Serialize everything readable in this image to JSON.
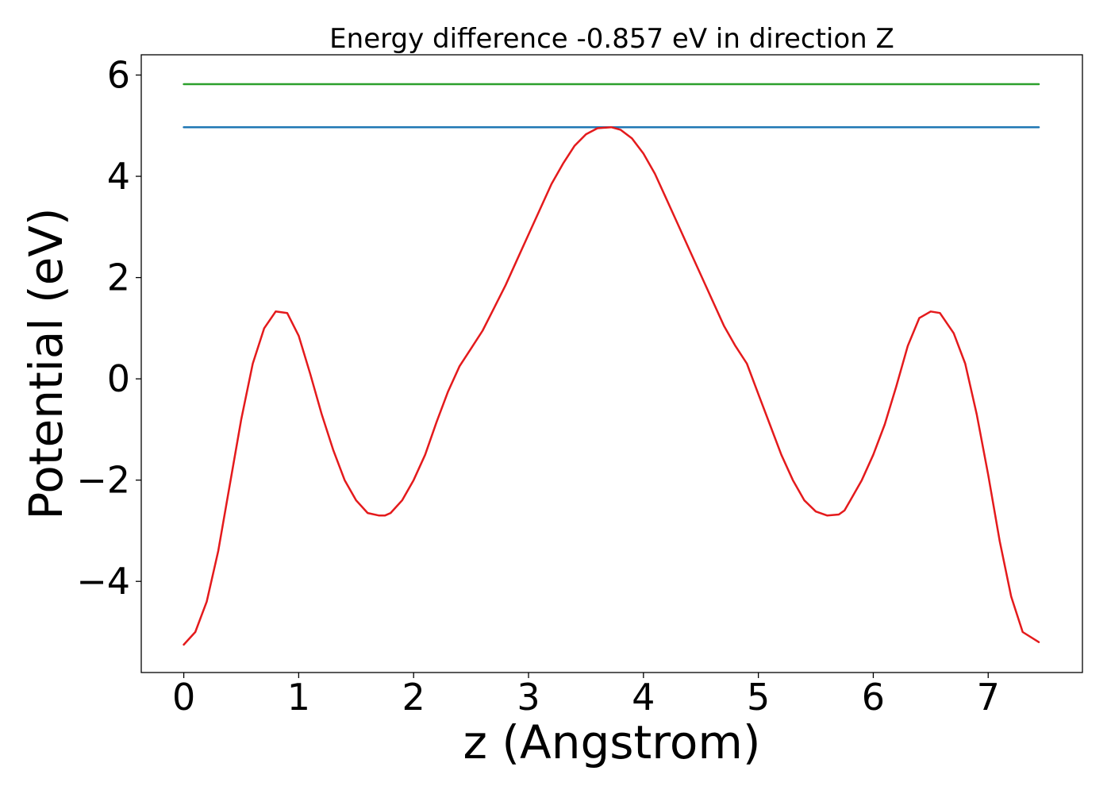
{
  "chart_data": {
    "type": "line",
    "title": "Energy difference -0.857 eV in direction Z",
    "xlabel": "z (Angstrom)",
    "ylabel": "Potential (eV)",
    "xlim": [
      -0.37,
      7.82
    ],
    "ylim": [
      -5.8,
      6.4
    ],
    "x_ticks": [
      0,
      1,
      2,
      3,
      4,
      5,
      6,
      7
    ],
    "x_tick_labels": [
      "0",
      "1",
      "2",
      "3",
      "4",
      "5",
      "6",
      "7"
    ],
    "y_ticks": [
      -4,
      -2,
      0,
      2,
      4,
      6
    ],
    "y_tick_labels": [
      "−4",
      "−2",
      "0",
      "2",
      "4",
      "6"
    ],
    "grid": false,
    "series": [
      {
        "color": "#2ca02c",
        "x": [
          0,
          7.44
        ],
        "y": [
          5.82,
          5.82
        ]
      },
      {
        "color": "#1f77b4",
        "x": [
          0,
          7.44
        ],
        "y": [
          4.97,
          4.97
        ]
      },
      {
        "color": "#e41a1c",
        "x": [
          0,
          0.1,
          0.2,
          0.3,
          0.4,
          0.5,
          0.6,
          0.7,
          0.8,
          0.9,
          1.0,
          1.1,
          1.2,
          1.3,
          1.4,
          1.5,
          1.6,
          1.7,
          1.75,
          1.8,
          1.9,
          2.0,
          2.1,
          2.2,
          2.3,
          2.4,
          2.5,
          2.6,
          2.7,
          2.8,
          2.9,
          3.0,
          3.1,
          3.2,
          3.3,
          3.4,
          3.5,
          3.6,
          3.72,
          3.8,
          3.9,
          4.0,
          4.1,
          4.2,
          4.3,
          4.4,
          4.5,
          4.6,
          4.7,
          4.8,
          4.9,
          5.0,
          5.1,
          5.2,
          5.3,
          5.4,
          5.5,
          5.6,
          5.7,
          5.75,
          5.8,
          5.9,
          6.0,
          6.1,
          6.2,
          6.3,
          6.4,
          6.5,
          6.58,
          6.7,
          6.8,
          6.9,
          7.0,
          7.1,
          7.2,
          7.3,
          7.44
        ],
        "y": [
          -5.25,
          -5.0,
          -4.4,
          -3.4,
          -2.1,
          -0.8,
          0.3,
          1.0,
          1.33,
          1.3,
          0.85,
          0.1,
          -0.7,
          -1.4,
          -2.0,
          -2.4,
          -2.65,
          -2.7,
          -2.7,
          -2.65,
          -2.4,
          -2.0,
          -1.5,
          -0.85,
          -0.25,
          0.25,
          0.6,
          0.95,
          1.4,
          1.85,
          2.35,
          2.85,
          3.35,
          3.85,
          4.25,
          4.6,
          4.83,
          4.95,
          4.97,
          4.92,
          4.75,
          4.45,
          4.05,
          3.55,
          3.05,
          2.55,
          2.05,
          1.55,
          1.05,
          0.65,
          0.3,
          -0.3,
          -0.9,
          -1.5,
          -2.0,
          -2.4,
          -2.62,
          -2.7,
          -2.68,
          -2.6,
          -2.4,
          -2.0,
          -1.5,
          -0.9,
          -0.15,
          0.65,
          1.2,
          1.33,
          1.3,
          0.9,
          0.3,
          -0.7,
          -1.9,
          -3.2,
          -4.3,
          -5.0,
          -5.2
        ]
      }
    ]
  }
}
